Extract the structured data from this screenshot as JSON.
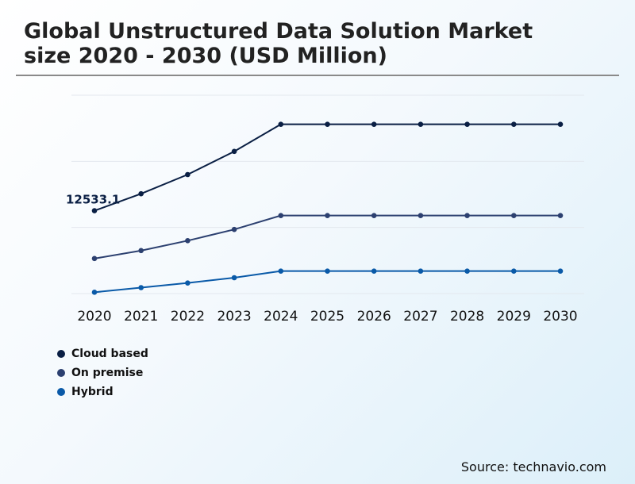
{
  "header": {
    "title_line1": "Global Unstructured Data Solution Market",
    "title_line2": "size 2020 - 2030 (USD Million)"
  },
  "footer": {
    "source": "Source: technavio.com"
  },
  "chart_data": {
    "type": "line",
    "title": "Global Unstructured Data Solution Market size 2020 - 2030 (USD Million)",
    "xlabel": "",
    "ylabel": "",
    "grid": true,
    "legend_placement": "bottom-left",
    "x": [
      "2020",
      "2021",
      "2022",
      "2023",
      "2024",
      "2025",
      "2026",
      "2027",
      "2028",
      "2029",
      "2030"
    ],
    "ylim": [
      0,
      30000
    ],
    "series": [
      {
        "name": "Cloud based",
        "color": "#0a1f44",
        "values": [
          12533.1,
          15100,
          18000,
          21500,
          25600,
          25600,
          25600,
          25600,
          25600,
          25600,
          25600
        ]
      },
      {
        "name": "On premise",
        "color": "#2c4070",
        "values": [
          5300,
          6500,
          8000,
          9700,
          11800,
          11800,
          11800,
          11800,
          11800,
          11800,
          11800
        ]
      },
      {
        "name": "Hybrid",
        "color": "#0a5aa8",
        "values": [
          200,
          900,
          1600,
          2400,
          3400,
          3400,
          3400,
          3400,
          3400,
          3400,
          3400
        ]
      }
    ],
    "annotations": [
      {
        "series": "Cloud based",
        "x": "2020",
        "text": "12533.1"
      }
    ]
  }
}
